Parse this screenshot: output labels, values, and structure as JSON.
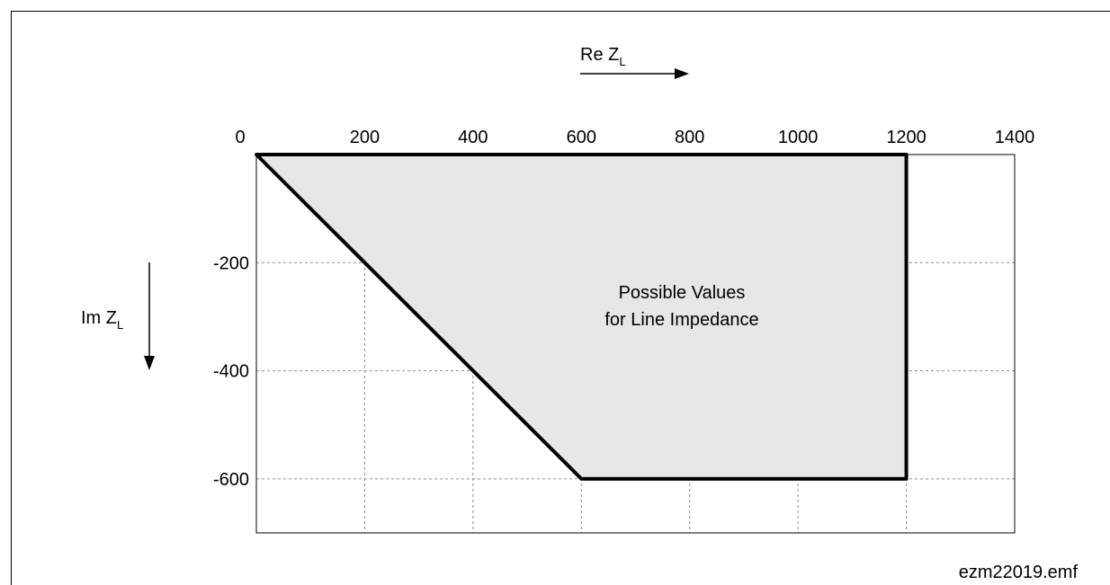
{
  "chart_data": {
    "type": "area",
    "x_axis": {
      "label_main": "Re Z",
      "label_sub": "L",
      "range": [
        0,
        1400
      ],
      "ticks": [
        0,
        200,
        400,
        600,
        800,
        1000,
        1200,
        1400
      ],
      "tick_labels": [
        "0",
        "200",
        "400",
        "600",
        "800",
        "1000",
        "1200",
        "1400"
      ],
      "direction": "increasing-right",
      "position": "top"
    },
    "y_axis": {
      "label_main": "Im Z",
      "label_sub": "L",
      "range": [
        0,
        -700
      ],
      "ticks": [
        -200,
        -400,
        -600
      ],
      "tick_labels": [
        "-200",
        "-400",
        "-600"
      ],
      "direction": "decreasing-down"
    },
    "grid": true,
    "region": {
      "points": [
        {
          "x": 0,
          "y": 0
        },
        {
          "x": 1200,
          "y": 0
        },
        {
          "x": 1200,
          "y": -600
        },
        {
          "x": 600,
          "y": -600
        }
      ],
      "fill_color": "#e6e6e6",
      "stroke_color": "#000000"
    },
    "annotation": [
      "Possible Values",
      "for Line Impedance"
    ],
    "footer": "ezm22019.emf"
  }
}
